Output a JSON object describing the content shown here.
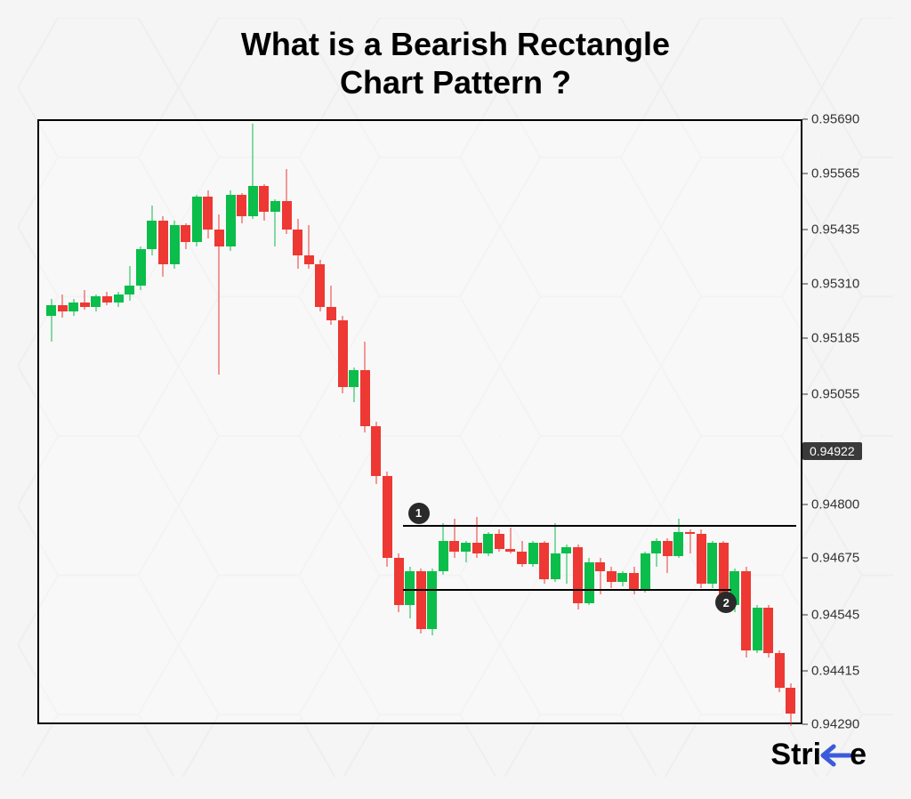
{
  "title_line1": "What is a Bearish Rectangle",
  "title_line2": "Chart Pattern ?",
  "logo_text_pre": "Stri",
  "logo_text_post": "e",
  "chart": {
    "type": "candlestick",
    "background_color": "#f5f5f5",
    "bull_color": "#0bbd4a",
    "bear_color": "#ed3833",
    "border_color": "#000000",
    "title_fontsize": 36,
    "y_axis": {
      "min": 0.9429,
      "max": 0.9569,
      "ticks": [
        0.9569,
        0.95565,
        0.95435,
        0.9531,
        0.95185,
        0.95055,
        0.948,
        0.94675,
        0.94545,
        0.94415,
        0.9429
      ],
      "price_marker": 0.94922,
      "label_fontsize": 15
    },
    "resistance_line": {
      "y": 0.94755,
      "x_start_pct": 47.5,
      "x_end_pct": 99,
      "label": "1"
    },
    "support_line": {
      "y": 0.94605,
      "x_start_pct": 47.5,
      "x_end_pct": 90.5,
      "label": "2"
    },
    "candle_width": 11,
    "candles": [
      {
        "o": 0.9524,
        "h": 0.9528,
        "l": 0.9518,
        "c": 0.95265,
        "t": "bull"
      },
      {
        "o": 0.95265,
        "h": 0.9529,
        "l": 0.95235,
        "c": 0.9525,
        "t": "bear"
      },
      {
        "o": 0.9525,
        "h": 0.9528,
        "l": 0.9524,
        "c": 0.9527,
        "t": "bull"
      },
      {
        "o": 0.9527,
        "h": 0.953,
        "l": 0.95255,
        "c": 0.9526,
        "t": "bear"
      },
      {
        "o": 0.9526,
        "h": 0.9529,
        "l": 0.9525,
        "c": 0.95285,
        "t": "bull"
      },
      {
        "o": 0.95285,
        "h": 0.95295,
        "l": 0.95265,
        "c": 0.9527,
        "t": "bear"
      },
      {
        "o": 0.9527,
        "h": 0.95295,
        "l": 0.9526,
        "c": 0.9529,
        "t": "bull"
      },
      {
        "o": 0.9529,
        "h": 0.95355,
        "l": 0.95275,
        "c": 0.9531,
        "t": "bull"
      },
      {
        "o": 0.9531,
        "h": 0.954,
        "l": 0.953,
        "c": 0.95395,
        "t": "bull"
      },
      {
        "o": 0.95395,
        "h": 0.95495,
        "l": 0.9538,
        "c": 0.9546,
        "t": "bull"
      },
      {
        "o": 0.9546,
        "h": 0.9547,
        "l": 0.9533,
        "c": 0.9536,
        "t": "bear"
      },
      {
        "o": 0.9536,
        "h": 0.9546,
        "l": 0.9535,
        "c": 0.9545,
        "t": "bull"
      },
      {
        "o": 0.9545,
        "h": 0.95455,
        "l": 0.95395,
        "c": 0.9541,
        "t": "bear"
      },
      {
        "o": 0.9541,
        "h": 0.9552,
        "l": 0.954,
        "c": 0.95515,
        "t": "bull"
      },
      {
        "o": 0.95515,
        "h": 0.9553,
        "l": 0.9542,
        "c": 0.9544,
        "t": "bear"
      },
      {
        "o": 0.9544,
        "h": 0.95475,
        "l": 0.95105,
        "c": 0.954,
        "t": "bear"
      },
      {
        "o": 0.954,
        "h": 0.9553,
        "l": 0.9539,
        "c": 0.9552,
        "t": "bull"
      },
      {
        "o": 0.9552,
        "h": 0.95525,
        "l": 0.95455,
        "c": 0.9547,
        "t": "bear"
      },
      {
        "o": 0.9547,
        "h": 0.95685,
        "l": 0.95465,
        "c": 0.9554,
        "t": "bull"
      },
      {
        "o": 0.9554,
        "h": 0.95545,
        "l": 0.9546,
        "c": 0.9548,
        "t": "bear"
      },
      {
        "o": 0.9548,
        "h": 0.9551,
        "l": 0.954,
        "c": 0.95505,
        "t": "bull"
      },
      {
        "o": 0.95505,
        "h": 0.9558,
        "l": 0.9543,
        "c": 0.9544,
        "t": "bear"
      },
      {
        "o": 0.9544,
        "h": 0.95465,
        "l": 0.9535,
        "c": 0.9538,
        "t": "bear"
      },
      {
        "o": 0.9538,
        "h": 0.9545,
        "l": 0.9535,
        "c": 0.9536,
        "t": "bear"
      },
      {
        "o": 0.9536,
        "h": 0.9537,
        "l": 0.9525,
        "c": 0.9526,
        "t": "bear"
      },
      {
        "o": 0.9526,
        "h": 0.9531,
        "l": 0.9522,
        "c": 0.9523,
        "t": "bear"
      },
      {
        "o": 0.9523,
        "h": 0.9524,
        "l": 0.9506,
        "c": 0.95075,
        "t": "bear"
      },
      {
        "o": 0.95075,
        "h": 0.9512,
        "l": 0.9504,
        "c": 0.95115,
        "t": "bull"
      },
      {
        "o": 0.95115,
        "h": 0.9518,
        "l": 0.9497,
        "c": 0.94985,
        "t": "bear"
      },
      {
        "o": 0.94985,
        "h": 0.94995,
        "l": 0.9485,
        "c": 0.9487,
        "t": "bear"
      },
      {
        "o": 0.9487,
        "h": 0.9488,
        "l": 0.9466,
        "c": 0.9468,
        "t": "bear"
      },
      {
        "o": 0.9468,
        "h": 0.9469,
        "l": 0.94555,
        "c": 0.9457,
        "t": "bear"
      },
      {
        "o": 0.9457,
        "h": 0.9466,
        "l": 0.9454,
        "c": 0.9465,
        "t": "bull"
      },
      {
        "o": 0.9465,
        "h": 0.94655,
        "l": 0.94505,
        "c": 0.94515,
        "t": "bear"
      },
      {
        "o": 0.94515,
        "h": 0.94655,
        "l": 0.945,
        "c": 0.9465,
        "t": "bull"
      },
      {
        "o": 0.9465,
        "h": 0.9476,
        "l": 0.9464,
        "c": 0.9472,
        "t": "bull"
      },
      {
        "o": 0.9472,
        "h": 0.9477,
        "l": 0.9468,
        "c": 0.94695,
        "t": "bear"
      },
      {
        "o": 0.94695,
        "h": 0.9472,
        "l": 0.9467,
        "c": 0.94715,
        "t": "bull"
      },
      {
        "o": 0.94715,
        "h": 0.94775,
        "l": 0.9468,
        "c": 0.9469,
        "t": "bear"
      },
      {
        "o": 0.9469,
        "h": 0.9474,
        "l": 0.94685,
        "c": 0.94735,
        "t": "bull"
      },
      {
        "o": 0.94735,
        "h": 0.94745,
        "l": 0.94695,
        "c": 0.947,
        "t": "bear"
      },
      {
        "o": 0.947,
        "h": 0.9475,
        "l": 0.9469,
        "c": 0.94695,
        "t": "bear"
      },
      {
        "o": 0.94695,
        "h": 0.9472,
        "l": 0.9466,
        "c": 0.94665,
        "t": "bear"
      },
      {
        "o": 0.94665,
        "h": 0.9472,
        "l": 0.9466,
        "c": 0.94715,
        "t": "bull"
      },
      {
        "o": 0.94715,
        "h": 0.9472,
        "l": 0.9462,
        "c": 0.9463,
        "t": "bear"
      },
      {
        "o": 0.9463,
        "h": 0.9476,
        "l": 0.94625,
        "c": 0.9469,
        "t": "bull"
      },
      {
        "o": 0.9469,
        "h": 0.9471,
        "l": 0.9462,
        "c": 0.94705,
        "t": "bull"
      },
      {
        "o": 0.94705,
        "h": 0.9471,
        "l": 0.9456,
        "c": 0.94575,
        "t": "bear"
      },
      {
        "o": 0.94575,
        "h": 0.9468,
        "l": 0.9457,
        "c": 0.9467,
        "t": "bull"
      },
      {
        "o": 0.9467,
        "h": 0.9468,
        "l": 0.94595,
        "c": 0.9465,
        "t": "bear"
      },
      {
        "o": 0.9465,
        "h": 0.9466,
        "l": 0.9461,
        "c": 0.94625,
        "t": "bear"
      },
      {
        "o": 0.94625,
        "h": 0.9465,
        "l": 0.94615,
        "c": 0.94645,
        "t": "bull"
      },
      {
        "o": 0.94645,
        "h": 0.9466,
        "l": 0.94595,
        "c": 0.94605,
        "t": "bear"
      },
      {
        "o": 0.94605,
        "h": 0.94695,
        "l": 0.946,
        "c": 0.9469,
        "t": "bull"
      },
      {
        "o": 0.9469,
        "h": 0.94725,
        "l": 0.9466,
        "c": 0.9472,
        "t": "bull"
      },
      {
        "o": 0.9472,
        "h": 0.94725,
        "l": 0.94645,
        "c": 0.94685,
        "t": "bear"
      },
      {
        "o": 0.94685,
        "h": 0.9477,
        "l": 0.9468,
        "c": 0.9474,
        "t": "bull"
      },
      {
        "o": 0.9474,
        "h": 0.94745,
        "l": 0.9469,
        "c": 0.94735,
        "t": "bear"
      },
      {
        "o": 0.94735,
        "h": 0.94745,
        "l": 0.9461,
        "c": 0.9462,
        "t": "bear"
      },
      {
        "o": 0.9462,
        "h": 0.9472,
        "l": 0.9461,
        "c": 0.94715,
        "t": "bull"
      },
      {
        "o": 0.94715,
        "h": 0.9472,
        "l": 0.94565,
        "c": 0.9457,
        "t": "bear"
      },
      {
        "o": 0.9457,
        "h": 0.94655,
        "l": 0.94555,
        "c": 0.9465,
        "t": "bull"
      },
      {
        "o": 0.9465,
        "h": 0.9466,
        "l": 0.9445,
        "c": 0.94465,
        "t": "bear"
      },
      {
        "o": 0.94465,
        "h": 0.9457,
        "l": 0.9446,
        "c": 0.94565,
        "t": "bull"
      },
      {
        "o": 0.94565,
        "h": 0.9457,
        "l": 0.9445,
        "c": 0.9446,
        "t": "bear"
      },
      {
        "o": 0.9446,
        "h": 0.94465,
        "l": 0.9437,
        "c": 0.9438,
        "t": "bear"
      },
      {
        "o": 0.9438,
        "h": 0.9439,
        "l": 0.9429,
        "c": 0.9432,
        "t": "bear"
      }
    ]
  }
}
